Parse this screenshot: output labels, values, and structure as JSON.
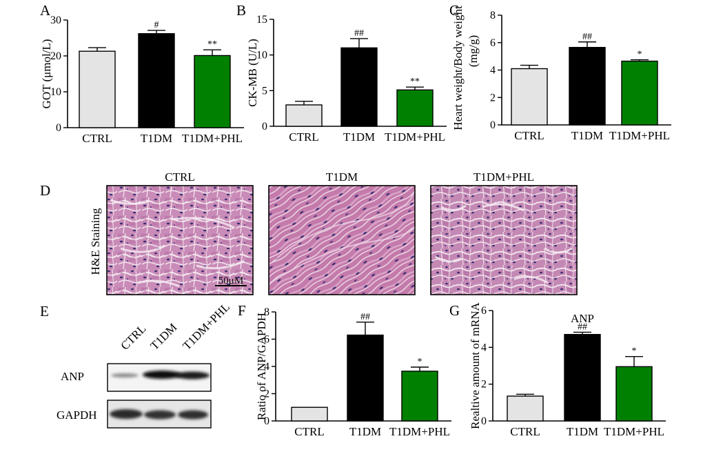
{
  "colors": {
    "ctrl": "#e4e4e4",
    "t1dm": "#000000",
    "phl": "#008000",
    "tissue_base": "#c77fb0",
    "tissue_dark": "#a45d94",
    "nucleus": "#3d2f73"
  },
  "chart_data": [
    {
      "panel": "A",
      "type": "bar",
      "categories": [
        "CTRL",
        "T1DM",
        "T1DM+PHL"
      ],
      "values": [
        21.3,
        26.2,
        20.1
      ],
      "errors": [
        1.0,
        0.9,
        1.6
      ],
      "significance": [
        "",
        "#",
        "**"
      ],
      "ylabel": "GOT (μmol/L)",
      "ylim": [
        0,
        30
      ],
      "yticks": [
        0,
        10,
        20,
        30
      ]
    },
    {
      "panel": "B",
      "type": "bar",
      "categories": [
        "CTRL",
        "T1DM",
        "T1DM+PHL"
      ],
      "values": [
        3.0,
        11.0,
        5.1
      ],
      "errors": [
        0.5,
        1.3,
        0.4
      ],
      "significance": [
        "",
        "##",
        "**"
      ],
      "ylabel": "CK-MB (U/L)",
      "ylim": [
        0,
        15
      ],
      "yticks": [
        0,
        5,
        10,
        15
      ]
    },
    {
      "panel": "C",
      "type": "bar",
      "categories": [
        "CTRL",
        "T1DM",
        "T1DM+PHL"
      ],
      "values": [
        4.1,
        5.65,
        4.65
      ],
      "errors": [
        0.25,
        0.4,
        0.1
      ],
      "significance": [
        "",
        "##",
        "*"
      ],
      "ylabel": "Heart weight/Body weight",
      "ylabel2": "(mg/g)",
      "ylim": [
        0,
        8
      ],
      "yticks": [
        0,
        2,
        4,
        6,
        8
      ]
    },
    {
      "panel": "F",
      "type": "bar",
      "categories": [
        "CTRL",
        "T1DM",
        "T1DM+PHL"
      ],
      "values": [
        1.0,
        6.3,
        3.65
      ],
      "errors": [
        0,
        0.95,
        0.3
      ],
      "significance": [
        "",
        "##",
        "*"
      ],
      "ylabel": "Ratio of ANP/GAPDH",
      "ylim": [
        0,
        8
      ],
      "yticks": [
        0,
        2,
        4,
        6,
        8
      ]
    },
    {
      "panel": "G",
      "type": "bar",
      "title": "ANP",
      "categories": [
        "CTRL",
        "T1DM",
        "T1DM+PHL"
      ],
      "values": [
        1.35,
        4.7,
        2.95
      ],
      "errors": [
        0.1,
        0.12,
        0.55
      ],
      "significance": [
        "",
        "##",
        "*"
      ],
      "ylabel": "Realtive amount of mRNA",
      "ylim": [
        0,
        6
      ],
      "yticks": [
        0,
        2,
        4,
        6
      ]
    }
  ],
  "panel_d": {
    "label": "D",
    "side_label": "H&E Staining",
    "titles": [
      "CTRL",
      "T1DM",
      "T1DM+PHL"
    ],
    "scale_bar": "50μM"
  },
  "panel_e": {
    "label": "E",
    "lanes": [
      "CTRL",
      "T1DM",
      "T1DM+PHL"
    ],
    "rows": [
      "ANP",
      "GAPDH"
    ]
  }
}
